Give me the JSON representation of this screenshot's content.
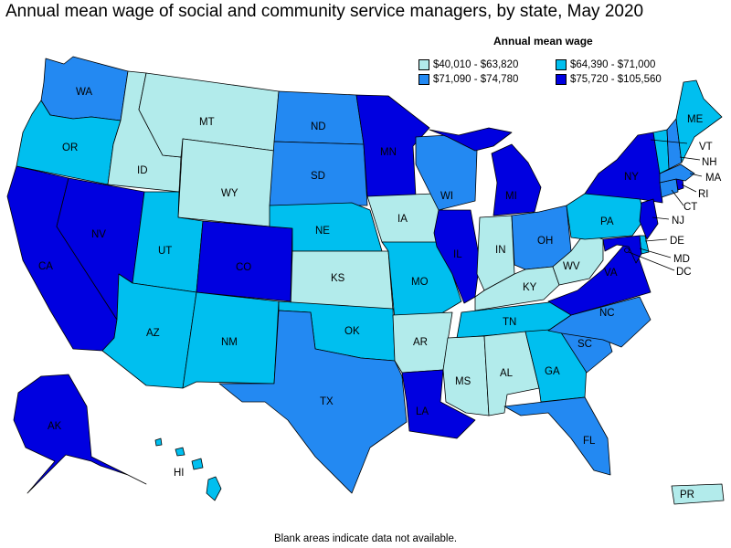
{
  "title": "Annual mean wage of social and community service managers, by state, May 2020",
  "legend": {
    "title": "Annual mean wage",
    "items": [
      {
        "key": "c1",
        "label": "$40,010 - $63,820",
        "color": "#b2ebeb"
      },
      {
        "key": "c2",
        "label": "$64,390 - $71,000",
        "color": "#00bfef"
      },
      {
        "key": "c3",
        "label": "$71,090 - $74,780",
        "color": "#2389f2"
      },
      {
        "key": "c4",
        "label": "$75,720 - $105,560",
        "color": "#0000e0"
      }
    ]
  },
  "footnote": "Blank areas indicate data not available.",
  "states": {
    "WA": "c3",
    "OR": "c2",
    "CA": "c4",
    "ID": "c1",
    "NV": "c4",
    "MT": "c1",
    "WY": "c1",
    "UT": "c2",
    "AZ": "c2",
    "CO": "c4",
    "NM": "c2",
    "ND": "c3",
    "SD": "c3",
    "NE": "c2",
    "KS": "c1",
    "OK": "c2",
    "TX": "c3",
    "MN": "c4",
    "IA": "c1",
    "MO": "c2",
    "AR": "c1",
    "LA": "c4",
    "WI": "c3",
    "IL": "c4",
    "MI": "c4",
    "IN": "c1",
    "OH": "c3",
    "KY": "c1",
    "TN": "c2",
    "MS": "c1",
    "AL": "c1",
    "GA": "c2",
    "FL": "c3",
    "SC": "c3",
    "NC": "c3",
    "VA": "c4",
    "WV": "c1",
    "PA": "c2",
    "NY": "c4",
    "ME": "c2",
    "VT": "c2",
    "NH": "c3",
    "MA": "c3",
    "RI": "c4",
    "CT": "c3",
    "NJ": "c4",
    "DE": "c2",
    "MD": "c4",
    "DC": "c4",
    "AK": "c4",
    "HI": "c2",
    "PR": "c1"
  },
  "labels": {
    "WA": "WA",
    "OR": "OR",
    "CA": "CA",
    "ID": "ID",
    "NV": "NV",
    "MT": "MT",
    "WY": "WY",
    "UT": "UT",
    "AZ": "AZ",
    "CO": "CO",
    "NM": "NM",
    "ND": "ND",
    "SD": "SD",
    "NE": "NE",
    "KS": "KS",
    "OK": "OK",
    "TX": "TX",
    "MN": "MN",
    "IA": "IA",
    "MO": "MO",
    "AR": "AR",
    "LA": "LA",
    "WI": "WI",
    "IL": "IL",
    "MI": "MI",
    "IN": "IN",
    "OH": "OH",
    "KY": "KY",
    "TN": "TN",
    "MS": "MS",
    "AL": "AL",
    "GA": "GA",
    "FL": "FL",
    "SC": "SC",
    "NC": "NC",
    "VA": "VA",
    "WV": "WV",
    "PA": "PA",
    "NY": "NY",
    "ME": "ME",
    "VT": "VT",
    "NH": "NH",
    "MA": "MA",
    "RI": "RI",
    "CT": "CT",
    "NJ": "NJ",
    "DE": "DE",
    "MD": "MD",
    "DC": "DC",
    "AK": "AK",
    "HI": "HI",
    "PR": "PR"
  }
}
